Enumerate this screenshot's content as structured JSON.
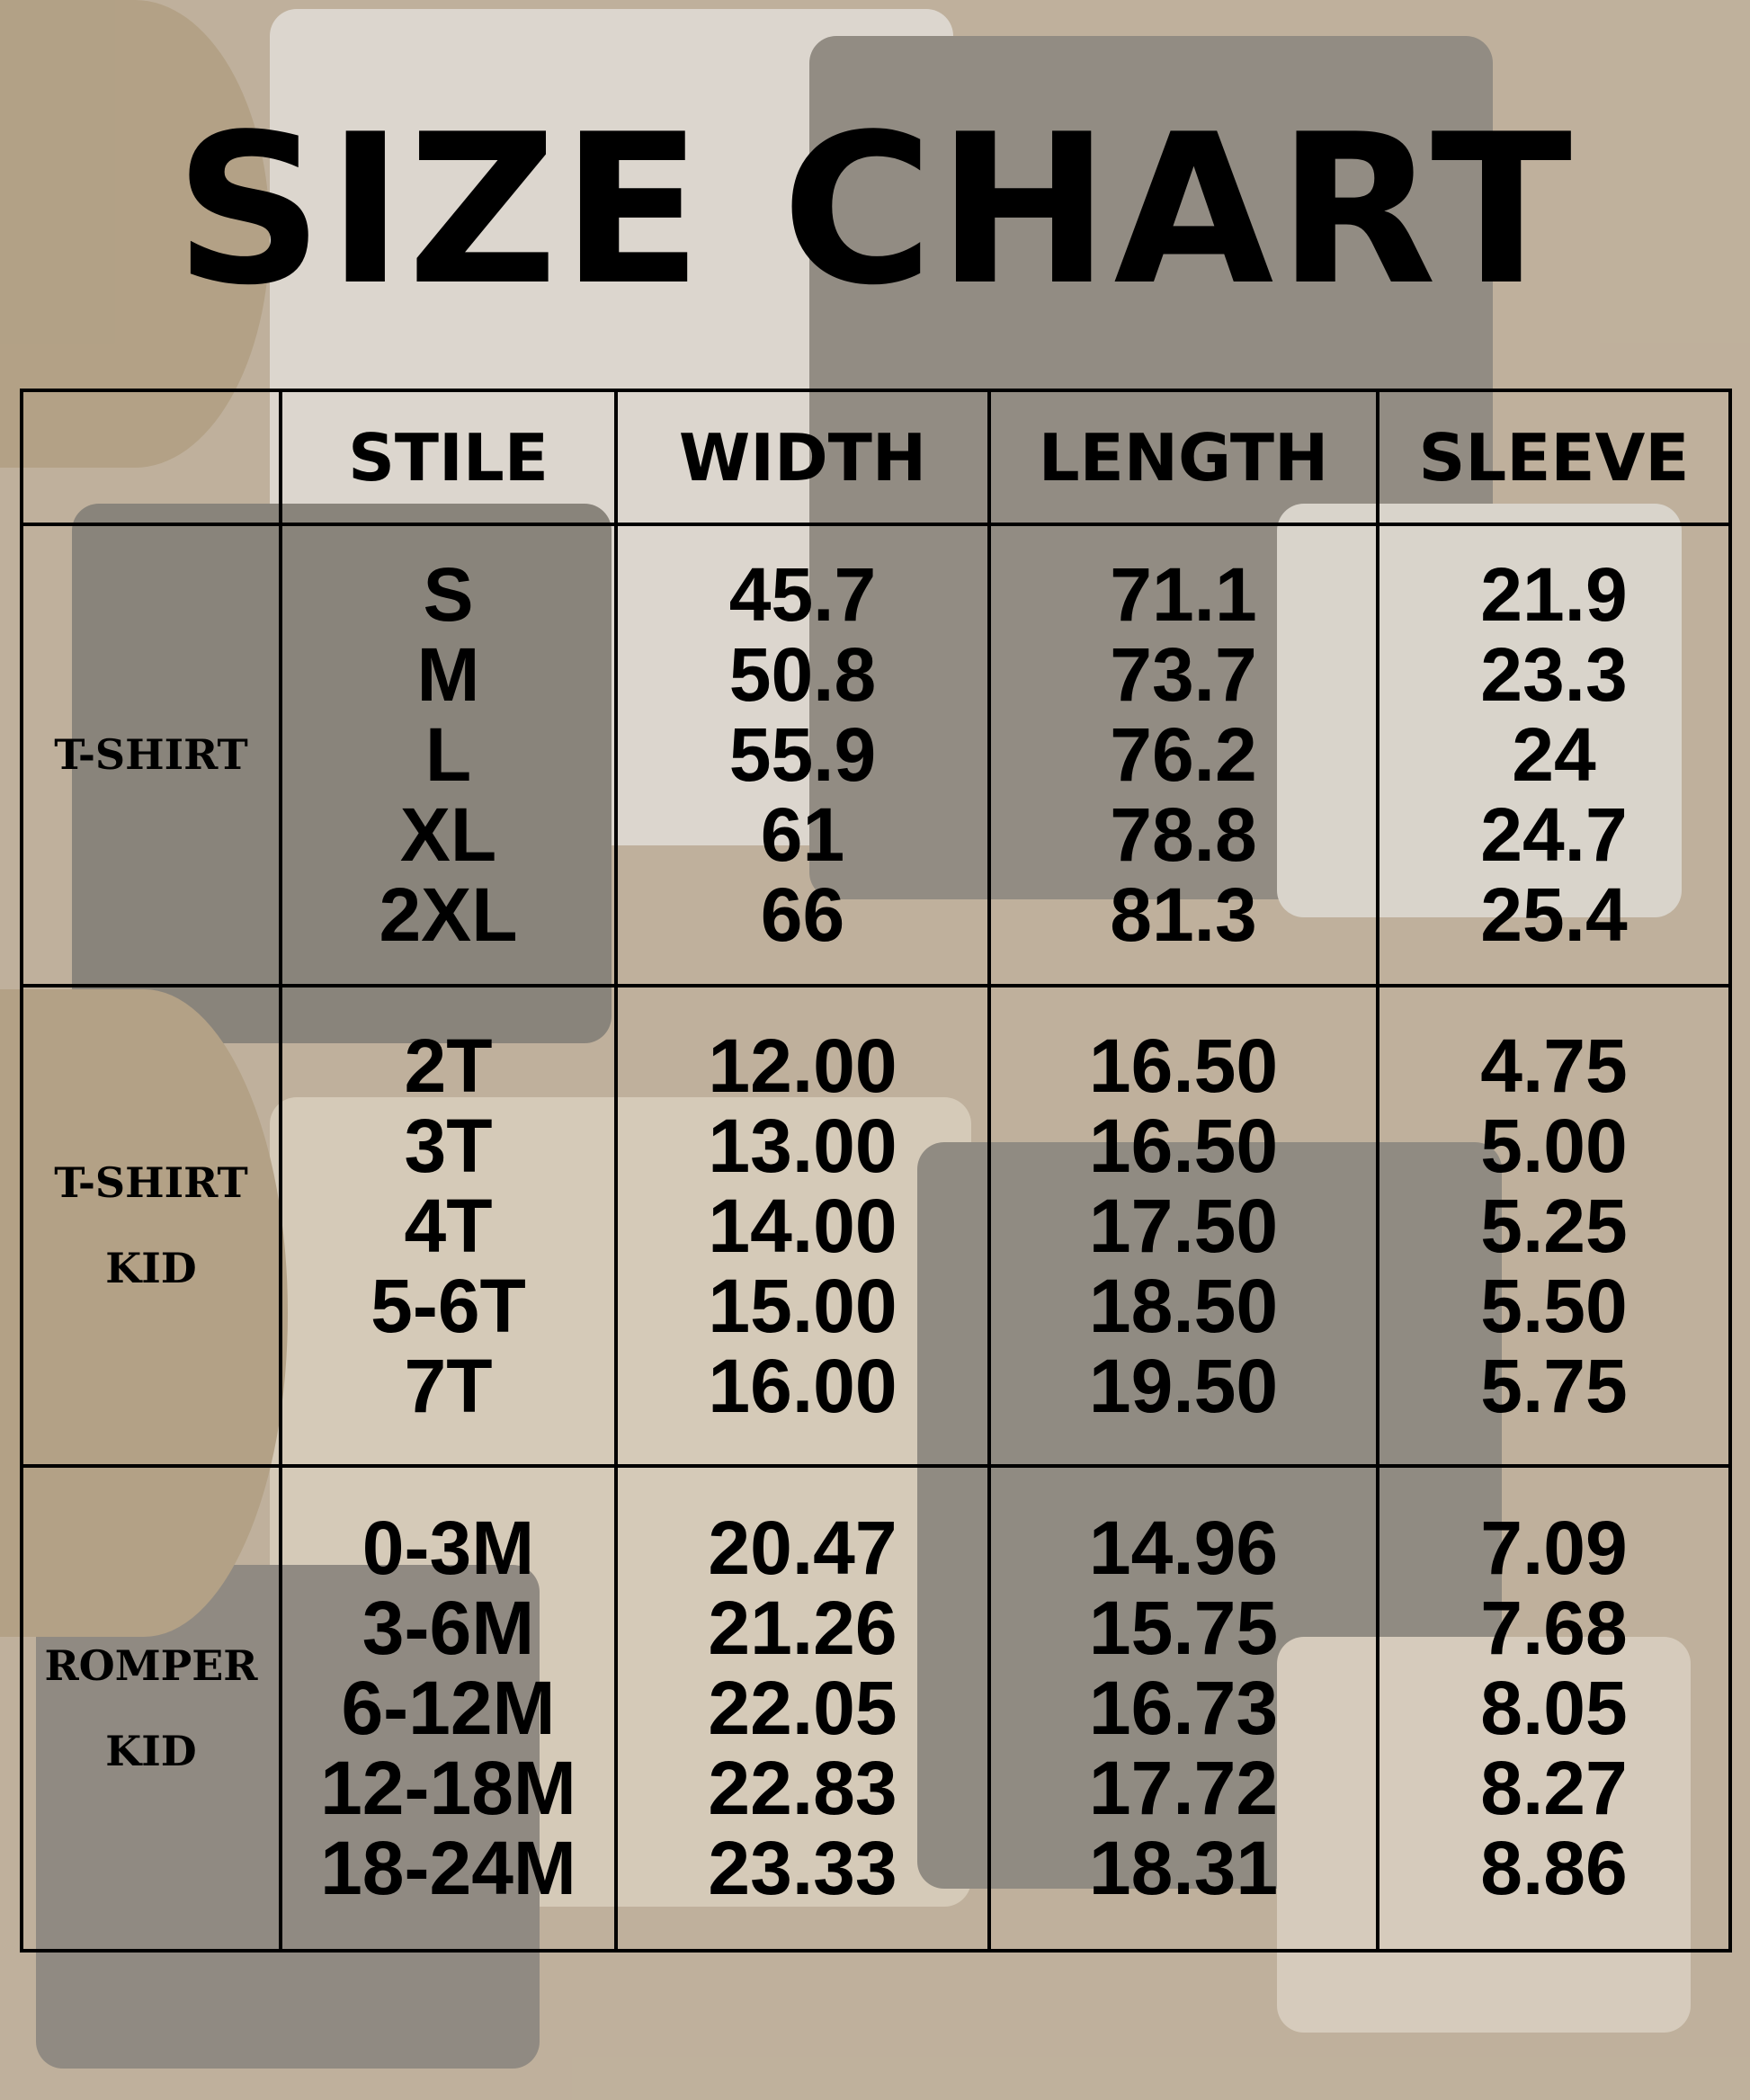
{
  "title": "SIZE CHART",
  "headers": [
    "",
    "STILE",
    "WIDTH",
    "LENGTH",
    "SLEEVE"
  ],
  "sections": [
    {
      "category": [
        "T-SHIRT"
      ],
      "sizes": [
        "S",
        "M",
        "L",
        "XL",
        "2XL"
      ],
      "width": [
        "45.7",
        "50.8",
        "55.9",
        "61",
        "66"
      ],
      "length": [
        "71.1",
        "73.7",
        "76.2",
        "78.8",
        "81.3"
      ],
      "sleeve": [
        "21.9",
        "23.3",
        "24",
        "24.7",
        "25.4"
      ]
    },
    {
      "category": [
        "T-SHIRT",
        "KID"
      ],
      "sizes": [
        "2T",
        "3T",
        "4T",
        "5-6T",
        "7T"
      ],
      "width": [
        "12.00",
        "13.00",
        "14.00",
        "15.00",
        "16.00"
      ],
      "length": [
        "16.50",
        "16.50",
        "17.50",
        "18.50",
        "19.50"
      ],
      "sleeve": [
        "4.75",
        "5.00",
        "5.25",
        "5.50",
        "5.75"
      ]
    },
    {
      "category": [
        "ROMPER",
        "KID"
      ],
      "sizes": [
        "0-3M",
        "3-6M",
        "6-12M",
        "12-18M",
        "18-24M"
      ],
      "width": [
        "20.47",
        "21.26",
        "22.05",
        "22.83",
        "23.33"
      ],
      "length": [
        "14.96",
        "15.75",
        "16.73",
        "17.72",
        "18.31"
      ],
      "sleeve": [
        "7.09",
        "7.68",
        "8.05",
        "8.27",
        "8.86"
      ]
    }
  ],
  "colors": {
    "background": "#bfae95",
    "text": "#000000"
  }
}
